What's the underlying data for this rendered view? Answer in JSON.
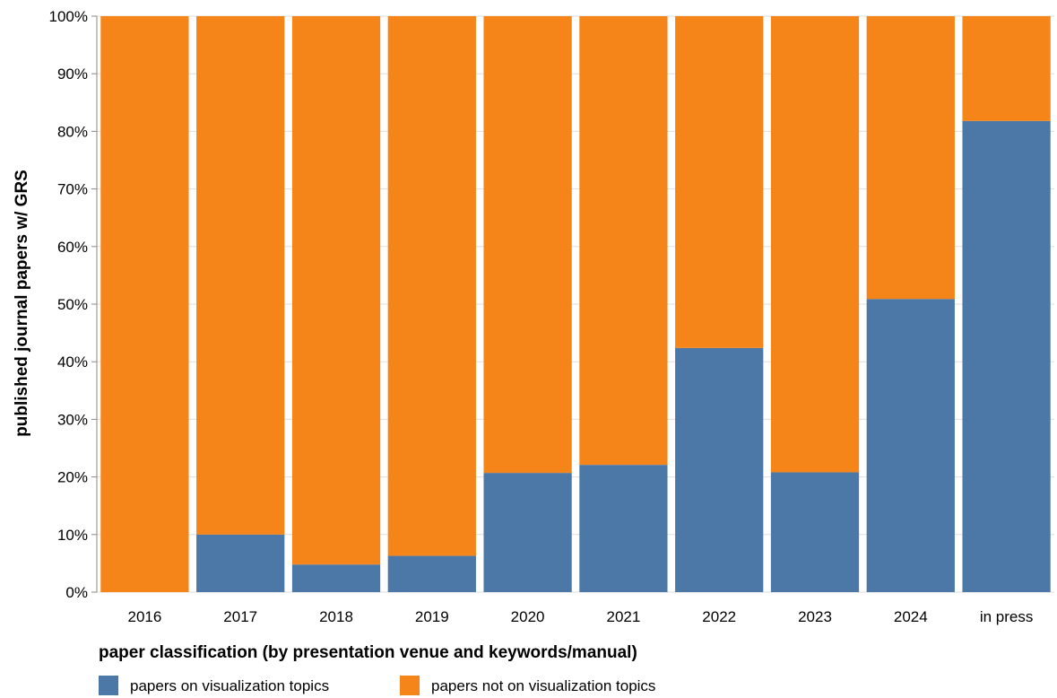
{
  "chart_data": {
    "type": "bar",
    "stacked": true,
    "normalized": true,
    "categories": [
      "2016",
      "2017",
      "2018",
      "2019",
      "2020",
      "2021",
      "2022",
      "2023",
      "2024",
      "in press"
    ],
    "series": [
      {
        "name": "papers on visualization topics",
        "color": "#4c78a8",
        "values": [
          0,
          10,
          4.8,
          6.3,
          20.7,
          22.1,
          42.4,
          20.8,
          50.9,
          81.8
        ]
      },
      {
        "name": "papers not on visualization topics",
        "color": "#f58518",
        "values": [
          100,
          90,
          95.2,
          93.7,
          79.3,
          77.9,
          57.6,
          79.2,
          49.1,
          18.2
        ]
      }
    ],
    "xlabel": "",
    "ylabel": "published journal papers w/ GRS",
    "ylim": [
      0,
      100
    ],
    "yticks": [
      0,
      10,
      20,
      30,
      40,
      50,
      60,
      70,
      80,
      90,
      100
    ],
    "ytick_labels": [
      "0%",
      "10%",
      "20%",
      "30%",
      "40%",
      "50%",
      "60%",
      "70%",
      "80%",
      "90%",
      "100%"
    ],
    "grid": true,
    "legend": {
      "title": "paper classification (by presentation venue and keywords/manual)",
      "placement": "bottom-left"
    }
  }
}
